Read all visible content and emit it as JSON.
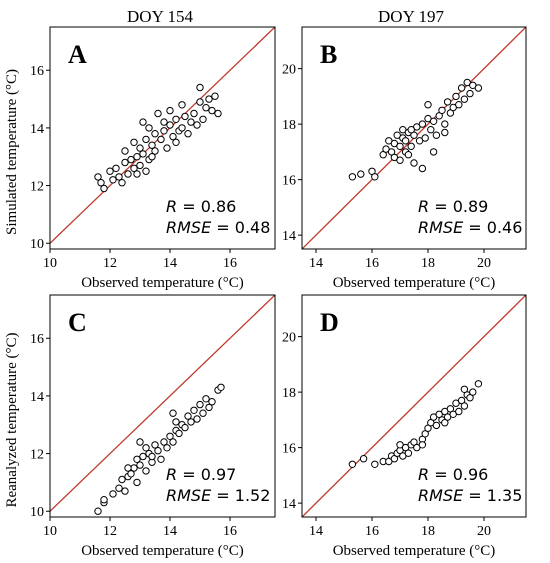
{
  "column_titles": [
    "DOY 154",
    "DOY 197"
  ],
  "row_ylabels": [
    "Simulated temperature (°C)",
    "Reanalyzed temperature (°C)"
  ],
  "colors": {
    "one_to_one_line": "#c0392b",
    "marker_edge": "#000000",
    "marker_face": "#ffffff"
  },
  "chart_data": [
    {
      "type": "scatter",
      "panel": "A",
      "xlabel": "Observed temperature (°C)",
      "ylabel": "Simulated temperature (°C)",
      "xlim": [
        10,
        17.5
      ],
      "ylim": [
        9.8,
        17.5
      ],
      "xticks": [
        10,
        12,
        14,
        16
      ],
      "yticks": [
        10,
        12,
        14,
        16
      ],
      "stats": {
        "R": "0.86",
        "RMSE": "0.48"
      },
      "reference_line": "1:1",
      "points": [
        [
          11.6,
          12.3
        ],
        [
          11.7,
          12.1
        ],
        [
          11.8,
          11.9
        ],
        [
          12.0,
          12.5
        ],
        [
          12.1,
          12.2
        ],
        [
          12.2,
          12.6
        ],
        [
          12.3,
          12.3
        ],
        [
          12.4,
          12.1
        ],
        [
          12.5,
          12.8
        ],
        [
          12.5,
          13.2
        ],
        [
          12.6,
          12.4
        ],
        [
          12.7,
          12.9
        ],
        [
          12.8,
          12.6
        ],
        [
          12.8,
          13.5
        ],
        [
          12.9,
          13.0
        ],
        [
          13.0,
          12.7
        ],
        [
          13.0,
          13.3
        ],
        [
          13.1,
          13.1
        ],
        [
          13.1,
          14.2
        ],
        [
          13.2,
          12.5
        ],
        [
          13.2,
          13.6
        ],
        [
          13.3,
          12.9
        ],
        [
          13.3,
          14.0
        ],
        [
          13.4,
          13.4
        ],
        [
          13.5,
          13.2
        ],
        [
          13.5,
          13.8
        ],
        [
          13.6,
          14.5
        ],
        [
          13.7,
          13.6
        ],
        [
          13.8,
          13.9
        ],
        [
          13.9,
          13.3
        ],
        [
          14.0,
          14.1
        ],
        [
          14.0,
          14.6
        ],
        [
          14.1,
          13.7
        ],
        [
          14.2,
          14.3
        ],
        [
          14.3,
          13.9
        ],
        [
          14.4,
          14.0
        ],
        [
          14.4,
          14.8
        ],
        [
          14.5,
          14.4
        ],
        [
          14.6,
          13.8
        ],
        [
          14.7,
          14.2
        ],
        [
          14.8,
          14.5
        ],
        [
          14.9,
          14.1
        ],
        [
          15.0,
          14.9
        ],
        [
          15.1,
          14.3
        ],
        [
          15.2,
          14.7
        ],
        [
          15.3,
          15.0
        ],
        [
          15.4,
          14.6
        ],
        [
          15.5,
          15.1
        ],
        [
          15.6,
          14.5
        ],
        [
          13.4,
          13.0
        ],
        [
          12.9,
          12.4
        ],
        [
          13.8,
          14.2
        ],
        [
          14.2,
          13.5
        ],
        [
          15.0,
          15.4
        ]
      ]
    },
    {
      "type": "scatter",
      "panel": "B",
      "xlabel": "Observed temperature (°C)",
      "ylabel": "",
      "xlim": [
        13.5,
        21.5
      ],
      "ylim": [
        13.5,
        21.5
      ],
      "xticks": [
        14,
        16,
        18,
        20
      ],
      "yticks": [
        14,
        16,
        18,
        20
      ],
      "stats": {
        "R": "0.89",
        "RMSE": "0.46"
      },
      "reference_line": "1:1",
      "points": [
        [
          15.3,
          16.1
        ],
        [
          15.6,
          16.2
        ],
        [
          16.0,
          16.3
        ],
        [
          16.1,
          16.1
        ],
        [
          16.4,
          16.9
        ],
        [
          16.5,
          17.1
        ],
        [
          16.6,
          17.4
        ],
        [
          16.7,
          17.0
        ],
        [
          16.8,
          17.3
        ],
        [
          16.8,
          16.8
        ],
        [
          16.9,
          17.6
        ],
        [
          17.0,
          17.2
        ],
        [
          17.0,
          16.7
        ],
        [
          17.1,
          17.5
        ],
        [
          17.1,
          17.8
        ],
        [
          17.2,
          17.0
        ],
        [
          17.2,
          17.4
        ],
        [
          17.3,
          16.9
        ],
        [
          17.3,
          17.7
        ],
        [
          17.4,
          17.2
        ],
        [
          17.5,
          17.6
        ],
        [
          17.5,
          16.6
        ],
        [
          17.6,
          17.9
        ],
        [
          17.7,
          17.4
        ],
        [
          17.8,
          18.0
        ],
        [
          17.8,
          16.4
        ],
        [
          17.9,
          17.5
        ],
        [
          18.0,
          18.2
        ],
        [
          18.0,
          18.7
        ],
        [
          18.1,
          17.8
        ],
        [
          18.2,
          18.1
        ],
        [
          18.3,
          17.6
        ],
        [
          18.4,
          18.3
        ],
        [
          18.5,
          18.5
        ],
        [
          18.6,
          18.0
        ],
        [
          18.7,
          18.8
        ],
        [
          18.8,
          18.4
        ],
        [
          18.9,
          18.6
        ],
        [
          19.0,
          19.0
        ],
        [
          19.1,
          18.7
        ],
        [
          19.2,
          19.3
        ],
        [
          19.3,
          18.9
        ],
        [
          19.4,
          19.5
        ],
        [
          19.5,
          19.1
        ],
        [
          19.6,
          19.4
        ],
        [
          19.8,
          19.3
        ],
        [
          18.6,
          17.7
        ],
        [
          17.4,
          17.8
        ],
        [
          18.2,
          17.0
        ]
      ]
    },
    {
      "type": "scatter",
      "panel": "C",
      "xlabel": "Observed temperature (°C)",
      "ylabel": "Reanalyzed temperature (°C)",
      "xlim": [
        10,
        17.5
      ],
      "ylim": [
        9.8,
        17.5
      ],
      "xticks": [
        10,
        12,
        14,
        16
      ],
      "yticks": [
        10,
        12,
        14,
        16
      ],
      "stats": {
        "R": "0.97",
        "RMSE": "1.52"
      },
      "reference_line": "1:1",
      "points": [
        [
          11.6,
          10.0
        ],
        [
          11.8,
          10.3
        ],
        [
          11.8,
          10.4
        ],
        [
          12.1,
          10.6
        ],
        [
          12.3,
          10.8
        ],
        [
          12.4,
          11.1
        ],
        [
          12.5,
          10.7
        ],
        [
          12.6,
          11.2
        ],
        [
          12.7,
          11.3
        ],
        [
          12.8,
          11.5
        ],
        [
          12.9,
          11.0
        ],
        [
          12.9,
          11.8
        ],
        [
          13.0,
          11.6
        ],
        [
          13.1,
          11.9
        ],
        [
          13.2,
          12.2
        ],
        [
          13.2,
          11.4
        ],
        [
          13.3,
          12.0
        ],
        [
          13.4,
          11.7
        ],
        [
          13.5,
          12.3
        ],
        [
          13.6,
          12.1
        ],
        [
          13.7,
          11.8
        ],
        [
          13.8,
          12.4
        ],
        [
          13.9,
          12.2
        ],
        [
          14.0,
          12.6
        ],
        [
          14.1,
          12.4
        ],
        [
          14.2,
          12.8
        ],
        [
          14.2,
          13.1
        ],
        [
          14.3,
          12.7
        ],
        [
          14.4,
          13.0
        ],
        [
          14.5,
          12.9
        ],
        [
          14.6,
          13.3
        ],
        [
          14.7,
          13.1
        ],
        [
          14.8,
          13.5
        ],
        [
          14.9,
          13.2
        ],
        [
          15.0,
          13.7
        ],
        [
          15.1,
          13.4
        ],
        [
          15.2,
          13.9
        ],
        [
          15.3,
          13.6
        ],
        [
          15.4,
          13.8
        ],
        [
          15.6,
          14.2
        ],
        [
          15.7,
          14.3
        ],
        [
          13.0,
          12.4
        ],
        [
          12.6,
          11.5
        ],
        [
          13.4,
          11.9
        ],
        [
          14.1,
          13.4
        ]
      ]
    },
    {
      "type": "scatter",
      "panel": "D",
      "xlabel": "Observed temperature (°C)",
      "ylabel": "",
      "xlim": [
        13.5,
        21.5
      ],
      "ylim": [
        13.5,
        21.5
      ],
      "xticks": [
        14,
        16,
        18,
        20
      ],
      "yticks": [
        14,
        16,
        18,
        20
      ],
      "stats": {
        "R": "0.96",
        "RMSE": "1.35"
      },
      "reference_line": "1:1",
      "points": [
        [
          15.3,
          15.4
        ],
        [
          15.7,
          15.6
        ],
        [
          16.1,
          15.4
        ],
        [
          16.4,
          15.5
        ],
        [
          16.6,
          15.5
        ],
        [
          16.7,
          15.7
        ],
        [
          16.8,
          15.6
        ],
        [
          16.9,
          15.8
        ],
        [
          17.0,
          15.9
        ],
        [
          17.0,
          16.1
        ],
        [
          17.1,
          15.7
        ],
        [
          17.2,
          16.0
        ],
        [
          17.3,
          15.8
        ],
        [
          17.4,
          16.1
        ],
        [
          17.5,
          16.2
        ],
        [
          17.6,
          16.0
        ],
        [
          17.8,
          16.3
        ],
        [
          17.9,
          16.5
        ],
        [
          18.0,
          16.7
        ],
        [
          18.1,
          16.9
        ],
        [
          18.2,
          17.1
        ],
        [
          18.3,
          16.8
        ],
        [
          18.4,
          17.2
        ],
        [
          18.5,
          17.0
        ],
        [
          18.6,
          17.3
        ],
        [
          18.7,
          17.1
        ],
        [
          18.8,
          17.4
        ],
        [
          18.9,
          17.2
        ],
        [
          19.0,
          17.6
        ],
        [
          19.1,
          17.3
        ],
        [
          19.2,
          17.7
        ],
        [
          19.3,
          17.5
        ],
        [
          19.4,
          17.9
        ],
        [
          19.5,
          17.8
        ],
        [
          19.6,
          18.0
        ],
        [
          19.8,
          18.3
        ],
        [
          19.3,
          18.1
        ],
        [
          17.8,
          16.1
        ],
        [
          18.6,
          16.9
        ]
      ]
    }
  ]
}
